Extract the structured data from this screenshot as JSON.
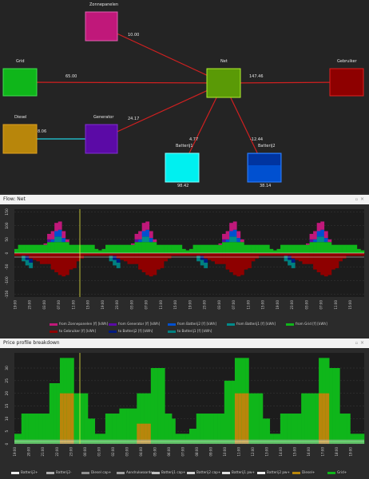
{
  "graph": {
    "nodes": [
      {
        "id": "zonnepanelen",
        "label": "Zonnepanelen",
        "color": "#c0187a",
        "border": "#e060b0"
      },
      {
        "id": "grid",
        "label": "Grid",
        "color": "#0fb61a",
        "border": "#40e050"
      },
      {
        "id": "diesel",
        "label": "Diesel",
        "color": "#b8860b",
        "border": "#e0a020"
      },
      {
        "id": "generator",
        "label": "Generator",
        "color": "#5b0aa6",
        "border": "#8030d0"
      },
      {
        "id": "net",
        "label": "Net",
        "color": "#5a9a06",
        "border": "#b0ee30"
      },
      {
        "id": "gebruiker",
        "label": "Gebruiker",
        "color": "#8e0000",
        "border": "#e02020"
      },
      {
        "id": "batterij1",
        "label": "Batterij1",
        "color": "#00f0f0",
        "border": "#80ffff",
        "value": "98.42"
      },
      {
        "id": "batterij2",
        "label": "Batterij2",
        "color": "#0050d0",
        "border": "#3080ff",
        "value": "38.14"
      }
    ],
    "edges": [
      {
        "from": "zonnepanelen",
        "to": "net",
        "label": "10.00",
        "color": "#d02020"
      },
      {
        "from": "grid",
        "to": "net",
        "label": "65.00",
        "color": "#d02020"
      },
      {
        "from": "net",
        "to": "gebruiker",
        "label": "147.46",
        "color": "#d02020"
      },
      {
        "from": "generator",
        "to": "net",
        "label": "24.17",
        "color": "#d02020"
      },
      {
        "from": "diesel",
        "to": "generator",
        "label": "8.06",
        "color": "#20d0e0"
      },
      {
        "from": "net",
        "to": "batterij1",
        "label": "4.77",
        "color": "#d02020"
      },
      {
        "from": "net",
        "to": "batterij2",
        "label": "-12.44",
        "color": "#d02020"
      }
    ]
  },
  "flow_panel": {
    "title": "Flow: Net",
    "close": "×",
    "float": "▫",
    "legend": [
      {
        "label": "from Zonnepanelen [f] [kWh]",
        "color": "#c0187a"
      },
      {
        "label": "from Generator [f] [kWh]",
        "color": "#5b0aa6"
      },
      {
        "label": "from Batterij2 [f] [kWh]",
        "color": "#0050d0"
      },
      {
        "label": "from Batterij1 [f] [kWh]",
        "color": "#008b8b"
      },
      {
        "label": "from Grid [f] [kWh]",
        "color": "#0fb61a"
      },
      {
        "label": "to Gebruiker [f] [kWh]",
        "color": "#8e0000"
      },
      {
        "label": "to Batterij2 [f] [kWh]",
        "color": "#001a80"
      },
      {
        "label": "to Batterij1 [f] [kWh]",
        "color": "#008080"
      }
    ]
  },
  "price_panel": {
    "title": "Price profile breakdown",
    "close": "×",
    "float": "▫",
    "legend": [
      {
        "label": "Batterij2+",
        "color": "#eeeeee"
      },
      {
        "label": "Batterij2-",
        "color": "#b0b0b0"
      },
      {
        "label": "Diesel cap+",
        "color": "#909090"
      },
      {
        "label": "Aandrukwaarde+",
        "color": "#a0a0a0"
      },
      {
        "label": "Batterij1 cap+",
        "color": "#c0c0c0"
      },
      {
        "label": "Batterij2 cap+",
        "color": "#d0d0d0"
      },
      {
        "label": "Batterij1 pw+",
        "color": "#e0e0e0"
      },
      {
        "label": "Batterij2 pw+",
        "color": "#f0f0f0"
      },
      {
        "label": "Diesel+",
        "color": "#b8860b"
      },
      {
        "label": "Grid+",
        "color": "#0fb61a"
      }
    ]
  },
  "chart_data": [
    {
      "type": "area",
      "title": "Flow: Net",
      "yticks": [
        -150,
        -100,
        -50,
        0,
        50,
        100,
        150
      ],
      "ylim": [
        -160,
        160
      ],
      "x_tick_labels": [
        "19:00",
        "20:00",
        "21:00",
        "22:00",
        "23:00",
        "00:00",
        "01:00",
        "02:00",
        "03:00",
        "04:00",
        "05:00",
        "06:00",
        "07:00",
        "08:00",
        "09:00",
        "10:00",
        "11:00",
        "12:00",
        "13:00",
        "14:00",
        "15:00",
        "16:00",
        "17:00",
        "18:00"
      ],
      "positive_series": [
        {
          "name": "from Grid [f] [kWh]",
          "color": "#0fb61a",
          "values": [
            15,
            30,
            30,
            30,
            30,
            30,
            30,
            30,
            30,
            40,
            40,
            40,
            40,
            40,
            40,
            30,
            30,
            30,
            30,
            30,
            30,
            30,
            15,
            10
          ]
        },
        {
          "name": "from Batterij1 [f] [kWh]",
          "color": "#008b8b",
          "values": [
            0,
            0,
            0,
            0,
            0,
            0,
            0,
            0,
            0,
            0,
            0,
            20,
            20,
            0,
            0,
            0,
            0,
            0,
            0,
            0,
            0,
            0,
            0,
            0
          ]
        },
        {
          "name": "from Batterij2 [f] [kWh]",
          "color": "#0050d0",
          "values": [
            0,
            0,
            0,
            0,
            0,
            0,
            0,
            0,
            0,
            0,
            10,
            20,
            25,
            15,
            0,
            0,
            0,
            0,
            0,
            0,
            0,
            0,
            0,
            0
          ]
        },
        {
          "name": "from Generator [f] [kWh]",
          "color": "#5b0aa6",
          "values": [
            0,
            0,
            0,
            0,
            0,
            0,
            0,
            0,
            0,
            10,
            0,
            0,
            0,
            0,
            0,
            0,
            0,
            0,
            0,
            0,
            0,
            0,
            0,
            0
          ]
        },
        {
          "name": "from Zonnepanelen [f] [kWh]",
          "color": "#c0187a",
          "values": [
            0,
            0,
            0,
            0,
            0,
            0,
            0,
            0,
            5,
            20,
            30,
            30,
            30,
            25,
            10,
            0,
            0,
            0,
            0,
            0,
            0,
            0,
            0,
            0
          ]
        }
      ],
      "negative_series": [
        {
          "name": "to Gebruiker [f] [kWh]",
          "color": "#8e0000",
          "values": [
            -10,
            -10,
            -10,
            -10,
            -20,
            -25,
            -30,
            -40,
            -40,
            -40,
            -60,
            -70,
            -80,
            -85,
            -80,
            -60,
            -55,
            -30,
            -20,
            -10,
            -10,
            -10,
            -10,
            -10
          ]
        },
        {
          "name": "to Batterij2 [f] [kWh]",
          "color": "#001a80",
          "values": [
            0,
            0,
            0,
            -15,
            -15,
            0,
            0,
            0,
            0,
            0,
            0,
            0,
            0,
            0,
            0,
            0,
            0,
            0,
            0,
            0,
            0,
            0,
            0,
            0
          ]
        },
        {
          "name": "to Batterij1 [f] [kWh]",
          "color": "#008080",
          "values": [
            0,
            0,
            -20,
            -20,
            -20,
            0,
            0,
            0,
            0,
            0,
            0,
            0,
            0,
            0,
            0,
            0,
            0,
            0,
            0,
            0,
            0,
            0,
            0,
            0
          ]
        }
      ],
      "repeats": 4
    },
    {
      "type": "area",
      "title": "Price profile breakdown",
      "yticks": [
        0,
        5,
        10,
        15,
        20,
        25,
        30
      ],
      "ylim": [
        0,
        36
      ],
      "x_tick_labels": [
        "19:00",
        "20:00",
        "21:00",
        "22:00",
        "23:00",
        "00:00",
        "01:00",
        "02:00",
        "03:00",
        "04:00",
        "05:00",
        "06:00",
        "07:00",
        "08:00",
        "09:00",
        "10:00",
        "11:00",
        "12:00",
        "13:00",
        "14:00",
        "15:00",
        "16:00",
        "17:00",
        "18:00"
      ],
      "series": [
        {
          "name": "Grid+",
          "color": "#0fb61a",
          "values": [
            4,
            4,
            12,
            12,
            12,
            12,
            12,
            12,
            12,
            12,
            24,
            24,
            24,
            34,
            34,
            34,
            34,
            20,
            20,
            20,
            20,
            10,
            10,
            4,
            4,
            4,
            12,
            12,
            12,
            12,
            14,
            14,
            14,
            14,
            14,
            20,
            20,
            20,
            20,
            30,
            30,
            30,
            30,
            12,
            12,
            10,
            4,
            4,
            4,
            4,
            6,
            6,
            12,
            12,
            12,
            12,
            12,
            12,
            12,
            12,
            25,
            25,
            25,
            34,
            34,
            34,
            34,
            20,
            20,
            20,
            20,
            10,
            10,
            4,
            4,
            4,
            12,
            12,
            12,
            12,
            12,
            12,
            20,
            20,
            20,
            20,
            20,
            34,
            34,
            34,
            30,
            30,
            30,
            12,
            12,
            12,
            4,
            4,
            4,
            4
          ]
        },
        {
          "name": "Diesel+",
          "color": "#b8860b",
          "values": [
            0,
            0,
            0,
            0,
            0,
            0,
            0,
            0,
            0,
            0,
            0,
            0,
            0,
            20,
            20,
            20,
            20,
            0,
            0,
            0,
            0,
            0,
            0,
            0,
            0,
            0,
            0,
            0,
            0,
            0,
            0,
            0,
            0,
            0,
            0,
            8,
            8,
            8,
            8,
            0,
            0,
            0,
            0,
            0,
            0,
            0,
            0,
            0,
            0,
            0,
            0,
            0,
            0,
            0,
            0,
            0,
            0,
            0,
            0,
            0,
            0,
            0,
            0,
            20,
            20,
            20,
            20,
            0,
            0,
            0,
            0,
            0,
            0,
            0,
            0,
            0,
            0,
            0,
            0,
            0,
            0,
            0,
            0,
            0,
            0,
            0,
            0,
            20,
            20,
            20,
            0,
            0,
            0,
            0,
            0,
            0,
            0,
            0,
            0,
            0
          ]
        }
      ]
    }
  ]
}
